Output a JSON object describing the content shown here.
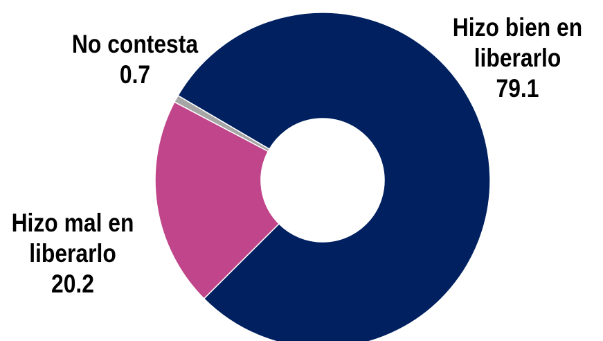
{
  "chart_data": {
    "type": "pie",
    "donut": true,
    "slices": [
      {
        "label_lines": [
          "No contesta"
        ],
        "value": 0.7,
        "value_text": "0.7",
        "color": "#a6a6a6"
      },
      {
        "label_lines": [
          "Hizo bien en",
          "liberarlo"
        ],
        "value": 79.1,
        "value_text": "79.1",
        "color": "#002060"
      },
      {
        "label_lines": [
          "Hizo mal en",
          "liberarlo"
        ],
        "value": 20.2,
        "value_text": "20.2",
        "color": "#c0458a"
      }
    ],
    "legend": "none",
    "data_labels": "outside"
  }
}
